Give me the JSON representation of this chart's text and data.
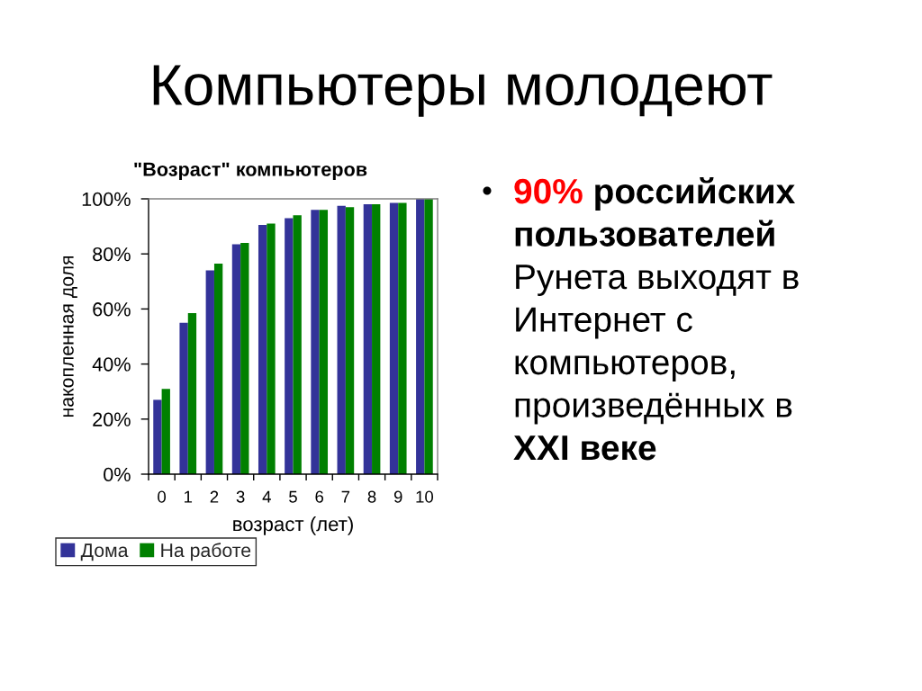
{
  "chart_data": {
    "type": "bar",
    "title": "Компьютеры молодеют",
    "subtitle": "\"Возраст\" компьютеров",
    "xlabel": "возраст (лет)",
    "ylabel": "накопленная доля",
    "categories": [
      "0",
      "1",
      "2",
      "3",
      "4",
      "5",
      "6",
      "7",
      "8",
      "9",
      "10"
    ],
    "series": [
      {
        "name": "Дома",
        "color": "#333399",
        "values": [
          27,
          55,
          74,
          83.5,
          90.5,
          93,
          96,
          97.5,
          98,
          98.5,
          100
        ]
      },
      {
        "name": "На работе",
        "color": "#008000",
        "values": [
          31,
          58.5,
          76.5,
          84,
          91,
          94,
          96,
          97,
          98,
          98.5,
          100
        ]
      }
    ],
    "ylim": [
      0,
      100
    ],
    "yticks": [
      {
        "value": 0,
        "label": "0%"
      },
      {
        "value": 20,
        "label": "20%"
      },
      {
        "value": 40,
        "label": "40%"
      },
      {
        "value": 60,
        "label": "60%"
      },
      {
        "value": 80,
        "label": "80%"
      },
      {
        "value": 100,
        "label": "100%"
      }
    ],
    "grid": false,
    "legend": "bottom left",
    "annotations": [
      "90% российских пользователей",
      "Рунета выходят в Интернет с компьютеров, произведённых в",
      "XXI веке"
    ]
  }
}
